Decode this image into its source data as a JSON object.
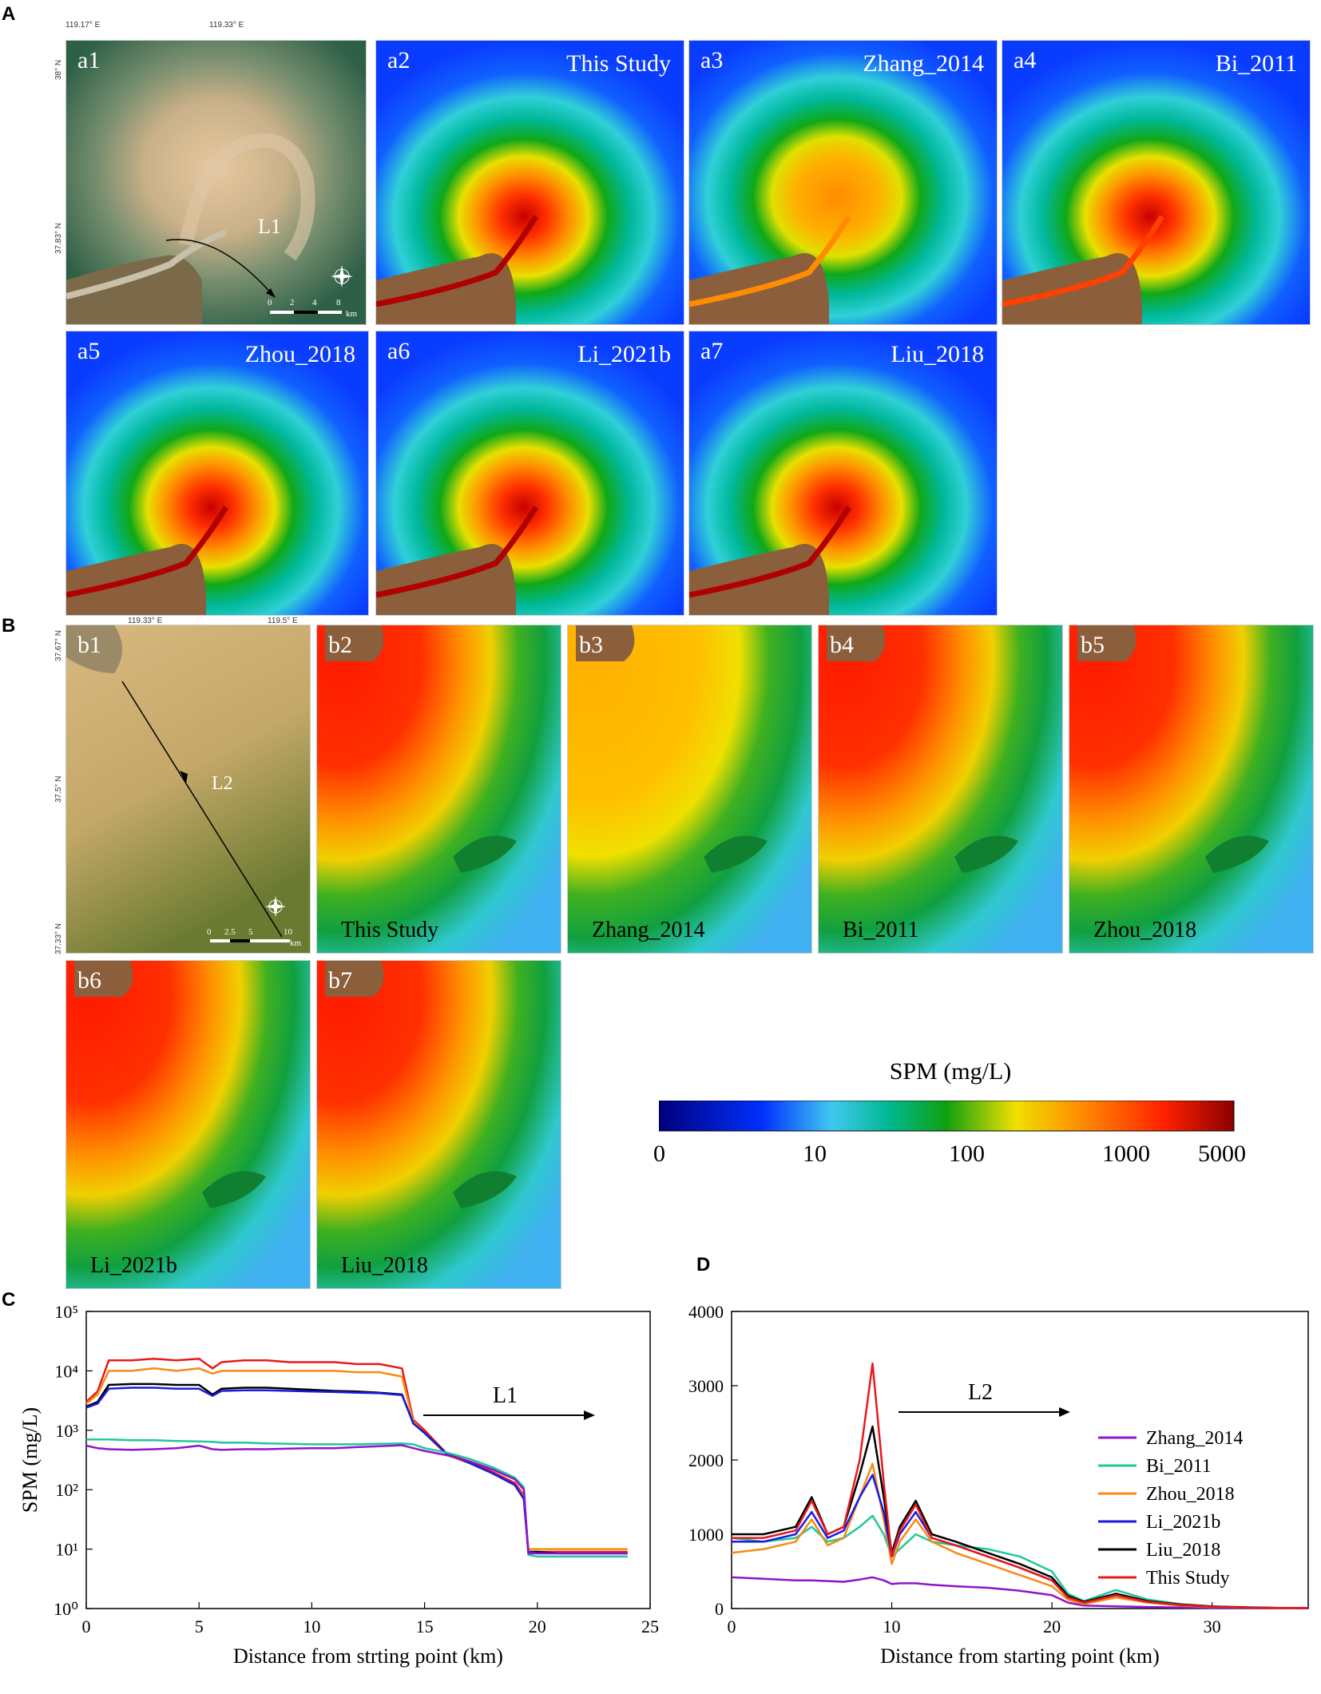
{
  "section_labels": {
    "A": "A",
    "B": "B",
    "C": "C",
    "D": "D"
  },
  "panel_a": {
    "a1": {
      "tag": "a1",
      "transect": "L1",
      "lon_ticks": [
        "119.17° E",
        "119.33° E"
      ],
      "lat_ticks": [
        "38° N",
        "37.83° N"
      ],
      "scale_ticks": [
        "0",
        "2",
        "4",
        "8"
      ],
      "scale_unit": "km"
    },
    "maps": [
      {
        "tag": "a2",
        "name": "This Study"
      },
      {
        "tag": "a3",
        "name": "Zhang_2014"
      },
      {
        "tag": "a4",
        "name": "Bi_2011"
      },
      {
        "tag": "a5",
        "name": "Zhou_2018"
      },
      {
        "tag": "a6",
        "name": "Li_2021b"
      },
      {
        "tag": "a7",
        "name": "Liu_2018"
      }
    ]
  },
  "panel_b": {
    "b1": {
      "tag": "b1",
      "transect": "L2",
      "lon_ticks": [
        "119.33° E",
        "119.5° E"
      ],
      "lat_ticks": [
        "37.67° N",
        "37.5° N",
        "37.33° N"
      ],
      "scale_ticks": [
        "0",
        "2.5",
        "5",
        "10"
      ],
      "scale_unit": "km"
    },
    "maps": [
      {
        "tag": "b2",
        "name": "This Study"
      },
      {
        "tag": "b3",
        "name": "Zhang_2014"
      },
      {
        "tag": "b4",
        "name": "Bi_2011"
      },
      {
        "tag": "b5",
        "name": "Zhou_2018"
      },
      {
        "tag": "b6",
        "name": "Li_2021b"
      },
      {
        "tag": "b7",
        "name": "Liu_2018"
      }
    ]
  },
  "colorbar": {
    "title": "SPM (mg/L)",
    "ticks": [
      "0",
      "10",
      "100",
      "1000",
      "5000"
    ],
    "colors": [
      "#00007a",
      "#0030ff",
      "#40c8f0",
      "#00c8a0",
      "#10a010",
      "#f0e000",
      "#ff8000",
      "#ff2000",
      "#8b0000"
    ]
  },
  "colors": {
    "This Study": "#e8191c",
    "Zhang_2014": "#9013c8",
    "Bi_2011": "#1fc89a",
    "Zhou_2018": "#f68a14",
    "Li_2021b": "#1a1ae0",
    "Liu_2018": "#000000",
    "land": "#8b5e3c"
  },
  "chart_data": [
    {
      "id": "C",
      "type": "line",
      "title": "",
      "annotation": "L1",
      "xlabel": "Distance from strting point (km)",
      "ylabel": "SPM (mg/L)",
      "yscale": "log",
      "xlim": [
        0,
        25
      ],
      "ylim": [
        1,
        100000
      ],
      "x_ticks": [
        "0",
        "5",
        "10",
        "15",
        "20",
        "25"
      ],
      "y_ticks": [
        "10⁰",
        "10¹",
        "10²",
        "10³",
        "10⁴",
        "10⁵"
      ],
      "x": [
        0,
        0.5,
        1,
        2,
        3,
        4,
        5,
        5.6,
        6,
        7,
        8,
        9,
        10,
        11,
        12,
        13,
        14,
        14.5,
        15,
        16,
        17,
        18,
        19,
        19.4,
        19.6,
        20,
        21,
        22,
        23,
        24
      ],
      "series": [
        {
          "name": "This Study",
          "values": [
            3000,
            4500,
            15000,
            15000,
            16000,
            15000,
            16000,
            11000,
            14000,
            15000,
            15000,
            14000,
            14000,
            14000,
            13000,
            13000,
            11000,
            1500,
            1000,
            400,
            300,
            200,
            130,
            80,
            9,
            9,
            9,
            9,
            9,
            9
          ]
        },
        {
          "name": "Zhou_2018",
          "values": [
            2800,
            4000,
            10000,
            10000,
            11000,
            10000,
            11000,
            9000,
            10000,
            10000,
            10000,
            10000,
            10000,
            10000,
            9500,
            9500,
            8000,
            1400,
            900,
            380,
            280,
            190,
            120,
            75,
            10,
            10,
            10,
            10,
            10,
            10
          ]
        },
        {
          "name": "Liu_2018",
          "values": [
            2500,
            3000,
            5800,
            6000,
            6000,
            5800,
            5800,
            4000,
            5000,
            5200,
            5200,
            5000,
            4800,
            4600,
            4500,
            4300,
            4000,
            1300,
            900,
            400,
            280,
            190,
            120,
            70,
            9,
            9,
            8.5,
            8.5,
            8.5,
            8.5
          ]
        },
        {
          "name": "Li_2021b",
          "values": [
            2400,
            2800,
            5000,
            5200,
            5200,
            5000,
            5000,
            3800,
            4600,
            4700,
            4700,
            4600,
            4500,
            4400,
            4300,
            4200,
            3900,
            1300,
            900,
            400,
            280,
            190,
            120,
            70,
            9,
            8.5,
            8.5,
            8.5,
            8.5,
            8.5
          ]
        },
        {
          "name": "Bi_2011",
          "values": [
            700,
            700,
            700,
            680,
            680,
            660,
            650,
            640,
            620,
            620,
            600,
            590,
            580,
            580,
            580,
            590,
            600,
            580,
            500,
            420,
            330,
            240,
            160,
            110,
            8,
            7.5,
            7.5,
            7.5,
            7.5,
            7.5
          ]
        },
        {
          "name": "Zhang_2014",
          "values": [
            550,
            500,
            480,
            470,
            480,
            500,
            550,
            480,
            470,
            480,
            480,
            490,
            500,
            500,
            520,
            540,
            560,
            500,
            450,
            380,
            300,
            220,
            150,
            100,
            8.5,
            8.5,
            8.5,
            8.5,
            8.5,
            8.5
          ]
        }
      ]
    },
    {
      "id": "D",
      "type": "line",
      "title": "",
      "annotation": "L2",
      "xlabel": "Distance from starting point (km)",
      "ylabel": "",
      "yscale": "linear",
      "xlim": [
        0,
        36
      ],
      "ylim": [
        0,
        4000
      ],
      "x_ticks": [
        "0",
        "10",
        "20",
        "30"
      ],
      "y_ticks": [
        "0",
        "1000",
        "2000",
        "3000",
        "4000"
      ],
      "x": [
        0,
        2,
        4,
        5,
        6,
        7,
        8,
        8.8,
        9.5,
        10,
        10.5,
        11.5,
        12.5,
        14,
        16,
        18,
        20,
        21,
        22,
        24,
        26,
        28,
        30,
        32,
        34,
        36
      ],
      "series": [
        {
          "name": "Zhang_2014",
          "values": [
            420,
            400,
            380,
            380,
            370,
            360,
            390,
            420,
            380,
            330,
            340,
            340,
            320,
            300,
            280,
            240,
            180,
            80,
            40,
            30,
            20,
            15,
            10,
            8,
            6,
            5
          ]
        },
        {
          "name": "Bi_2011",
          "values": [
            950,
            900,
            950,
            1100,
            900,
            950,
            1100,
            1250,
            1000,
            700,
            800,
            1000,
            900,
            850,
            800,
            700,
            500,
            200,
            100,
            250,
            120,
            60,
            30,
            20,
            10,
            8
          ]
        },
        {
          "name": "Zhou_2018",
          "values": [
            750,
            800,
            900,
            1200,
            850,
            950,
            1500,
            1950,
            1200,
            600,
            900,
            1200,
            900,
            750,
            600,
            450,
            300,
            120,
            60,
            150,
            80,
            40,
            20,
            15,
            8,
            6
          ]
        },
        {
          "name": "Li_2021b",
          "values": [
            900,
            900,
            1000,
            1300,
            950,
            1050,
            1500,
            1800,
            1300,
            700,
            1000,
            1300,
            950,
            850,
            700,
            550,
            380,
            150,
            80,
            180,
            90,
            50,
            25,
            15,
            8,
            6
          ]
        },
        {
          "name": "Liu_2018",
          "values": [
            1000,
            1000,
            1100,
            1500,
            1000,
            1100,
            1800,
            2450,
            1500,
            750,
            1100,
            1450,
            1000,
            900,
            750,
            600,
            420,
            170,
            90,
            200,
            100,
            55,
            28,
            16,
            9,
            6
          ]
        },
        {
          "name": "This Study",
          "values": [
            950,
            950,
            1050,
            1450,
            1000,
            1100,
            2000,
            3300,
            1700,
            700,
            1050,
            1400,
            950,
            850,
            700,
            550,
            380,
            150,
            80,
            180,
            90,
            50,
            25,
            15,
            8,
            6
          ]
        }
      ],
      "legend": [
        "Zhang_2014",
        "Bi_2011",
        "Zhou_2018",
        "Li_2021b",
        "Liu_2018",
        "This Study"
      ]
    }
  ]
}
